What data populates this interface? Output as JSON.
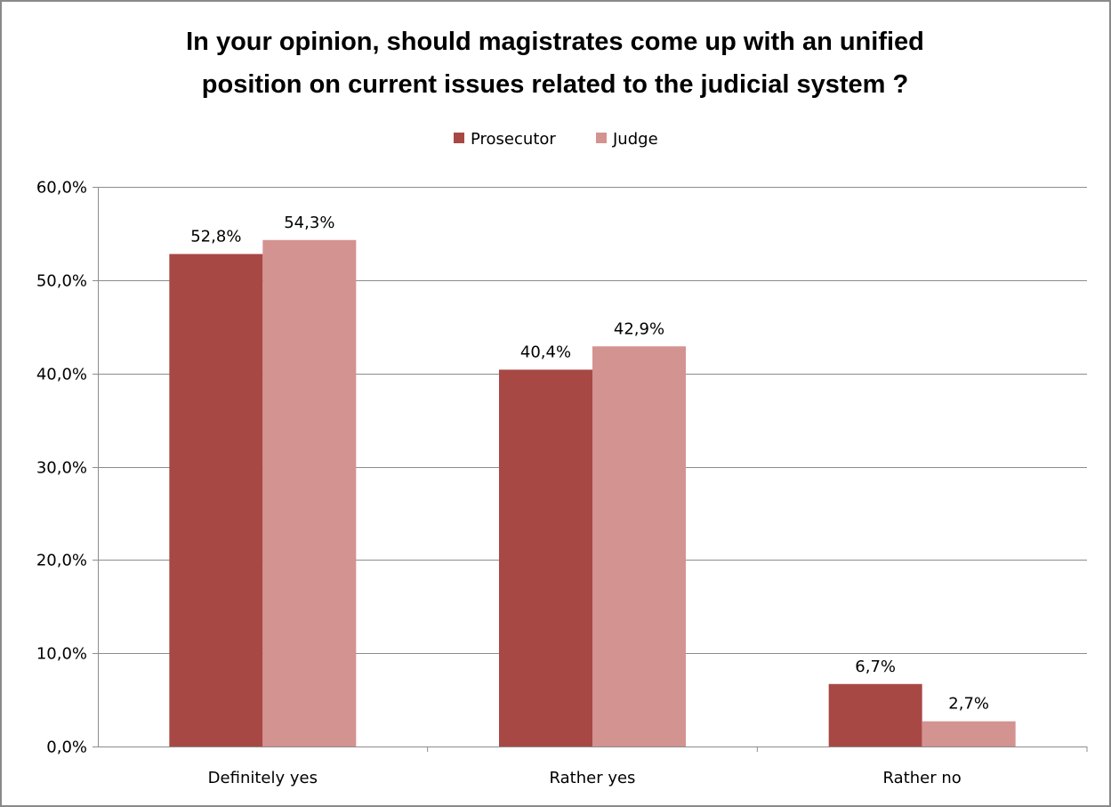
{
  "chart_data": {
    "type": "bar",
    "title_lines": [
      "In your opinion, should magistrates come up with an unified",
      "position on current issues related to the judicial system ?"
    ],
    "categories": [
      "Definitely yes",
      "Rather yes",
      "Rather no"
    ],
    "series": [
      {
        "name": "Prosecutor",
        "color": "#a84845",
        "values": [
          52.8,
          40.4,
          6.7
        ],
        "labels": [
          "52,8%",
          "40,4%",
          "6,7%"
        ]
      },
      {
        "name": "Judge",
        "color": "#d39391",
        "values": [
          54.3,
          42.9,
          2.7
        ],
        "labels": [
          "54,3%",
          "42,9%",
          "2,7%"
        ]
      }
    ],
    "ylim": [
      0,
      60
    ],
    "y_ticks": [
      0,
      10,
      20,
      30,
      40,
      50,
      60
    ],
    "y_tick_labels": [
      "0,0%",
      "10,0%",
      "20,0%",
      "30,0%",
      "40,0%",
      "50,0%",
      "60,0%"
    ],
    "grid": true,
    "legend_position": "top",
    "xlabel": "",
    "ylabel": ""
  }
}
